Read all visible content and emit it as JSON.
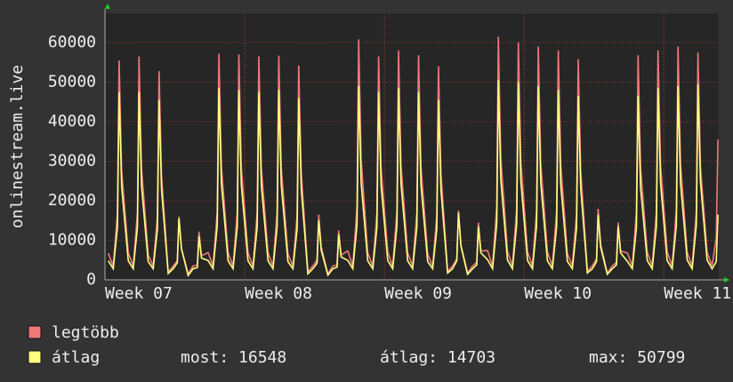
{
  "chart_data": {
    "type": "line",
    "ylabel": "onlinestream.live",
    "xlim": [
      0,
      738
    ],
    "xticks": [
      {
        "value": 0,
        "label": "Week 07"
      },
      {
        "value": 168,
        "label": "Week 08"
      },
      {
        "value": 336,
        "label": "Week 09"
      },
      {
        "value": 504,
        "label": "Week 10"
      },
      {
        "value": 672,
        "label": "Week 11"
      }
    ],
    "ylim": [
      0,
      67400
    ],
    "yticks": [
      0,
      10000,
      20000,
      30000,
      40000,
      50000,
      60000
    ],
    "grid": true,
    "x": [
      4,
      10,
      15,
      17,
      20,
      28,
      34,
      39,
      41,
      44,
      52,
      58,
      63,
      65,
      68,
      76,
      82,
      87,
      89,
      92,
      100,
      106,
      111,
      113,
      116,
      124,
      130,
      135,
      137,
      140,
      148,
      154,
      159,
      161,
      164,
      172,
      178,
      183,
      185,
      188,
      196,
      202,
      207,
      209,
      212,
      220,
      226,
      231,
      233,
      236,
      244,
      250,
      255,
      257,
      260,
      268,
      274,
      279,
      281,
      284,
      292,
      298,
      303,
      305,
      308,
      316,
      322,
      327,
      329,
      332,
      340,
      346,
      351,
      353,
      356,
      364,
      370,
      375,
      377,
      380,
      388,
      394,
      399,
      401,
      404,
      412,
      418,
      423,
      425,
      428,
      436,
      442,
      447,
      449,
      452,
      460,
      466,
      471,
      473,
      476,
      484,
      490,
      495,
      497,
      500,
      508,
      514,
      519,
      521,
      524,
      532,
      538,
      543,
      545,
      548,
      556,
      562,
      567,
      569,
      572,
      580,
      586,
      591,
      593,
      596,
      604,
      610,
      615,
      617,
      620,
      628,
      634,
      639,
      641,
      644,
      652,
      658,
      663,
      665,
      668,
      676,
      682,
      687,
      689,
      692,
      700,
      706,
      711,
      713,
      716,
      724,
      730,
      735,
      737
    ],
    "series": [
      {
        "name": "legtöbb",
        "color": "#f07878",
        "values": [
          6700,
          3500,
          16700,
          55500,
          27800,
          6800,
          3500,
          17000,
          56500,
          28300,
          6300,
          3500,
          15800,
          52800,
          26400,
          1900,
          3500,
          4800,
          16000,
          8000,
          1500,
          3500,
          3700,
          12200,
          6100,
          6900,
          3500,
          17200,
          57200,
          28600,
          6800,
          3500,
          17100,
          57000,
          28500,
          6800,
          3500,
          17000,
          56500,
          28300,
          6800,
          3500,
          17000,
          56700,
          28400,
          6500,
          3500,
          16300,
          54200,
          27100,
          2000,
          3500,
          5000,
          16500,
          8300,
          1500,
          3500,
          3800,
          12500,
          6300,
          7300,
          3500,
          18200,
          60800,
          30400,
          6800,
          3500,
          17000,
          56500,
          28300,
          7000,
          3500,
          17400,
          58000,
          29000,
          6800,
          3500,
          17000,
          56800,
          28400,
          6500,
          3500,
          16200,
          54000,
          27000,
          2100,
          3500,
          5300,
          17500,
          8800,
          1700,
          3500,
          4400,
          14500,
          7300,
          7400,
          3500,
          18500,
          61500,
          30800,
          7200,
          3500,
          18000,
          60000,
          30000,
          7100,
          3500,
          17700,
          59000,
          29500,
          7000,
          3500,
          17400,
          58000,
          29000,
          6700,
          3500,
          16700,
          55800,
          27900,
          2200,
          3500,
          5400,
          18000,
          9000,
          1700,
          3500,
          4400,
          14500,
          7300,
          6800,
          3500,
          17000,
          56800,
          28400,
          7000,
          3500,
          17400,
          58000,
          29000,
          7100,
          3500,
          17700,
          59000,
          29500,
          6900,
          3500,
          17300,
          57500,
          28800,
          6900,
          3500,
          10700,
          35500
        ]
      },
      {
        "name": "átlag",
        "color": "#ffff80",
        "values": [
          4800,
          2800,
          13300,
          47500,
          23800,
          4800,
          2800,
          13300,
          47500,
          23800,
          4600,
          2800,
          12700,
          45500,
          22800,
          1600,
          2800,
          4300,
          15500,
          7800,
          1100,
          2800,
          3100,
          11000,
          5500,
          4900,
          2800,
          13600,
          48500,
          24300,
          4800,
          2800,
          13400,
          48000,
          24000,
          4800,
          2800,
          13300,
          47500,
          23800,
          4800,
          2800,
          13400,
          48000,
          24000,
          4600,
          2800,
          12900,
          46000,
          23000,
          1500,
          2800,
          4200,
          15000,
          7500,
          1200,
          2800,
          3200,
          11500,
          5800,
          4900,
          2800,
          13700,
          49000,
          24500,
          4800,
          2800,
          13300,
          47500,
          23800,
          4900,
          2800,
          13600,
          48500,
          24300,
          4800,
          2800,
          13300,
          47500,
          23800,
          4600,
          2800,
          12700,
          45500,
          22800,
          1700,
          2800,
          4800,
          17000,
          8500,
          1400,
          2800,
          3800,
          13500,
          6800,
          5100,
          2800,
          14100,
          50500,
          25300,
          5000,
          2800,
          14000,
          50000,
          25000,
          4900,
          2800,
          13700,
          49000,
          24500,
          4800,
          2800,
          13400,
          48000,
          24000,
          4700,
          2800,
          13000,
          46500,
          23300,
          1700,
          2800,
          4600,
          16500,
          8300,
          1400,
          2800,
          3800,
          13500,
          6800,
          4700,
          2800,
          13000,
          46500,
          23300,
          4900,
          2800,
          13600,
          48500,
          24300,
          4900,
          2800,
          13700,
          49000,
          24500,
          5000,
          2800,
          13900,
          49500,
          24800,
          5000,
          2800,
          4600,
          16500
        ]
      }
    ],
    "stats": [
      {
        "label": "most:",
        "value": 16548
      },
      {
        "label": "átlag:",
        "value": 14703
      },
      {
        "label": "max:",
        "value": 50799
      }
    ]
  }
}
